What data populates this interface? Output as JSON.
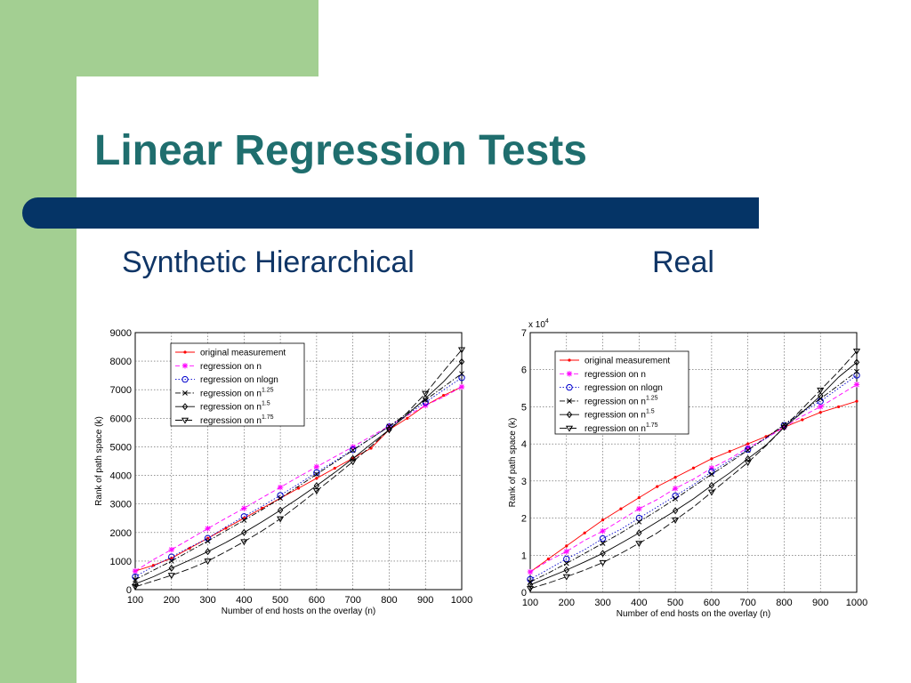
{
  "slide": {
    "title": "Linear Regression Tests",
    "subtitle_left": "Synthetic Hierarchical",
    "subtitle_right": "Real"
  },
  "colors": {
    "green": "#a3cf92",
    "band": "#053466",
    "title": "#1f6e6e",
    "subtitle": "#0f3566"
  },
  "chart_data": [
    {
      "type": "line",
      "xlabel": "Number of end hosts on the overlay (n)",
      "ylabel": "Rank of path space (k)",
      "xlim": [
        100,
        1000
      ],
      "ylim": [
        0,
        9000
      ],
      "xticks": [
        100,
        200,
        300,
        400,
        500,
        600,
        700,
        800,
        900,
        1000
      ],
      "yticks": [
        0,
        1000,
        2000,
        3000,
        4000,
        5000,
        6000,
        7000,
        8000,
        9000
      ],
      "ytick_labels": [
        "0",
        "1000",
        "2000",
        "3000",
        "4000",
        "5000",
        "6000",
        "7000",
        "8000",
        "9000"
      ],
      "exponent_label": "",
      "grid": true,
      "legend_position": "top-left",
      "x": [
        100,
        150,
        200,
        250,
        300,
        350,
        400,
        450,
        500,
        550,
        600,
        650,
        700,
        750,
        800,
        850,
        900,
        950,
        1000
      ],
      "series": [
        {
          "name": "original measurement",
          "marker": "dot",
          "dash": "solid",
          "color": "#ff0000",
          "values": [
            650,
            850,
            1100,
            1450,
            1800,
            2150,
            2500,
            2850,
            3200,
            3550,
            3900,
            4250,
            4600,
            4950,
            5600,
            6000,
            6450,
            6800,
            7100
          ]
        },
        {
          "name": "regression on n",
          "marker": "star",
          "dash": "dashed",
          "color": "#ff00ff",
          "values": [
            650,
            1050,
            1400,
            1770,
            2140,
            2500,
            2850,
            3220,
            3580,
            3950,
            4300,
            4650,
            5000,
            5370,
            5730,
            6090,
            6450,
            6750,
            7100
          ]
        },
        {
          "name": "regression on nlogn",
          "marker": "circle",
          "dash": "dotted",
          "color": "#0000cc",
          "values": [
            450,
            820,
            1150,
            1480,
            1800,
            2200,
            2560,
            2920,
            3300,
            3700,
            4100,
            4500,
            4900,
            5300,
            5700,
            6130,
            6560,
            6990,
            7420
          ]
        },
        {
          "name": "regression on n^1.25",
          "label": "regression on n",
          "exponent": "1.25",
          "marker": "x",
          "dash": "dashdot",
          "color": "#000000",
          "values": [
            350,
            680,
            1000,
            1350,
            1700,
            2060,
            2430,
            2800,
            3200,
            3620,
            4040,
            4460,
            4880,
            5300,
            5720,
            6180,
            6640,
            7100,
            7560
          ]
        },
        {
          "name": "regression on n^1.5",
          "label": "regression on n",
          "exponent": "1.5",
          "marker": "diamond",
          "dash": "solid",
          "color": "#000000",
          "values": [
            200,
            450,
            750,
            1030,
            1330,
            1650,
            2000,
            2380,
            2780,
            3200,
            3640,
            4100,
            4590,
            5100,
            5600,
            6130,
            6700,
            7280,
            7980
          ]
        },
        {
          "name": "regression on n^1.75",
          "label": "regression on n",
          "exponent": "1.75",
          "marker": "triangle",
          "dash": "longdash",
          "color": "#000000",
          "values": [
            100,
            300,
            500,
            730,
            1000,
            1330,
            1680,
            2060,
            2480,
            2960,
            3460,
            3960,
            4480,
            5020,
            5600,
            6200,
            6870,
            7650,
            8400
          ]
        }
      ]
    },
    {
      "type": "line",
      "xlabel": "Number of end hosts on the overlay (n)",
      "ylabel": "Rank of path space (k)",
      "xlim": [
        100,
        1000
      ],
      "ylim": [
        0,
        7
      ],
      "xticks": [
        100,
        200,
        300,
        400,
        500,
        600,
        700,
        800,
        900,
        1000
      ],
      "yticks": [
        0,
        1,
        2,
        3,
        4,
        5,
        6,
        7
      ],
      "ytick_labels": [
        "0",
        "1",
        "2",
        "3",
        "4",
        "5",
        "6",
        "7"
      ],
      "exponent_label": "x 10",
      "exponent_power": "4",
      "grid": true,
      "legend_position": "top-left",
      "x": [
        100,
        150,
        200,
        250,
        300,
        350,
        400,
        450,
        500,
        550,
        600,
        650,
        700,
        750,
        800,
        850,
        900,
        950,
        1000
      ],
      "series": [
        {
          "name": "original measurement",
          "marker": "dot",
          "dash": "solid",
          "color": "#ff0000",
          "values": [
            0.55,
            0.9,
            1.25,
            1.6,
            1.95,
            2.25,
            2.55,
            2.85,
            3.1,
            3.35,
            3.6,
            3.8,
            4.0,
            4.2,
            4.45,
            4.65,
            4.85,
            5.0,
            5.15
          ]
        },
        {
          "name": "regression on n",
          "marker": "star",
          "dash": "dashed",
          "color": "#ff00ff",
          "values": [
            0.55,
            0.85,
            1.1,
            1.4,
            1.65,
            1.95,
            2.25,
            2.5,
            2.8,
            3.05,
            3.35,
            3.6,
            3.9,
            4.15,
            4.45,
            4.75,
            5.0,
            5.3,
            5.6
          ]
        },
        {
          "name": "regression on nlogn",
          "marker": "circle",
          "dash": "dotted",
          "color": "#0000cc",
          "values": [
            0.35,
            0.62,
            0.9,
            1.15,
            1.45,
            1.7,
            2.0,
            2.3,
            2.6,
            2.9,
            3.25,
            3.55,
            3.85,
            4.15,
            4.5,
            4.85,
            5.15,
            5.5,
            5.85
          ]
        },
        {
          "name": "regression on n^1.25",
          "label": "regression on n",
          "exponent": "1.25",
          "marker": "x",
          "dash": "dashdot",
          "color": "#000000",
          "values": [
            0.28,
            0.52,
            0.78,
            1.05,
            1.32,
            1.6,
            1.9,
            2.2,
            2.52,
            2.85,
            3.18,
            3.5,
            3.83,
            4.17,
            4.52,
            4.88,
            5.22,
            5.58,
            5.95
          ]
        },
        {
          "name": "regression on n^1.5",
          "label": "regression on n",
          "exponent": "1.5",
          "marker": "diamond",
          "dash": "solid",
          "color": "#000000",
          "values": [
            0.2,
            0.4,
            0.6,
            0.82,
            1.05,
            1.32,
            1.6,
            1.9,
            2.2,
            2.52,
            2.88,
            3.22,
            3.6,
            3.97,
            4.45,
            4.85,
            5.3,
            5.8,
            6.2
          ]
        },
        {
          "name": "regression on n^1.75",
          "label": "regression on n",
          "exponent": "1.75",
          "marker": "triangle",
          "dash": "longdash",
          "color": "#000000",
          "values": [
            0.1,
            0.25,
            0.42,
            0.6,
            0.8,
            1.05,
            1.32,
            1.6,
            1.95,
            2.3,
            2.7,
            3.1,
            3.5,
            3.95,
            4.45,
            4.95,
            5.45,
            5.95,
            6.5
          ]
        }
      ]
    }
  ]
}
